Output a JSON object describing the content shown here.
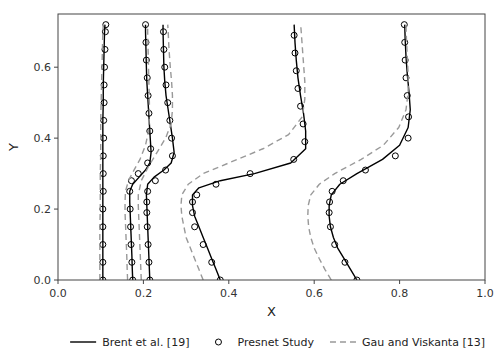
{
  "chart_data": {
    "type": "line",
    "x_label": "X",
    "y_label": "Y",
    "xlim": [
      0.0,
      1.0
    ],
    "ylim": [
      0.0,
      0.75
    ],
    "xticks": [
      {
        "value": 0.0,
        "label": "0.0"
      },
      0.2,
      0.4,
      0.6,
      0.8,
      {
        "value": 1.0,
        "label": "1.0"
      }
    ],
    "yticks": [
      {
        "value": 0.0,
        "label": "0.0"
      },
      0.2,
      0.4,
      0.6
    ],
    "grid": false,
    "legend": "lower right",
    "series": [
      {
        "name": "Brent et al. [19]",
        "color": "#000000",
        "line_style": "solid",
        "marker": "none",
        "x": [
          0.105,
          0.105,
          0.105,
          0.105,
          0.105,
          0.105,
          0.105,
          0.105,
          0.105,
          0.105,
          0.106,
          0.106,
          0.107,
          0.108,
          0.109,
          0.11
        ],
        "values": [
          0.0,
          0.05,
          0.1,
          0.15,
          0.2,
          0.25,
          0.3,
          0.35,
          0.4,
          0.45,
          0.5,
          0.55,
          0.6,
          0.65,
          0.7,
          0.72
        ]
      },
      {
        "name": "Presnet Study",
        "color": "#000000",
        "line_style": "none",
        "marker": "circle",
        "x": [
          0.105,
          0.105,
          0.105,
          0.105,
          0.105,
          0.106,
          0.106,
          0.106,
          0.107,
          0.107,
          0.108,
          0.108,
          0.109,
          0.11,
          0.111,
          0.112
        ],
        "values": [
          0.0,
          0.05,
          0.1,
          0.15,
          0.2,
          0.25,
          0.3,
          0.35,
          0.4,
          0.45,
          0.5,
          0.55,
          0.6,
          0.65,
          0.7,
          0.72
        ]
      },
      {
        "name": "Gau and Viskanta [13]",
        "color": "#999999",
        "line_style": "dashed",
        "marker": "none",
        "x": [
          0.098,
          0.098,
          0.098,
          0.098,
          0.099,
          0.099,
          0.099,
          0.1,
          0.1,
          0.1,
          0.101,
          0.102,
          0.103,
          0.104,
          0.105,
          0.106
        ],
        "values": [
          0.0,
          0.05,
          0.1,
          0.15,
          0.2,
          0.25,
          0.3,
          0.35,
          0.4,
          0.45,
          0.5,
          0.55,
          0.6,
          0.65,
          0.7,
          0.72
        ]
      },
      {
        "name": "Brent et al. [19]",
        "color": "#000000",
        "line_style": "solid",
        "marker": "none",
        "x": [
          0.175,
          0.174,
          0.173,
          0.172,
          0.171,
          0.17,
          0.169,
          0.168,
          0.168,
          0.175,
          0.19,
          0.205,
          0.215,
          0.218,
          0.216,
          0.214,
          0.212,
          0.21,
          0.208,
          0.207,
          0.206,
          0.205,
          0.205
        ],
        "values": [
          0.0,
          0.03,
          0.07,
          0.1,
          0.13,
          0.16,
          0.19,
          0.22,
          0.25,
          0.27,
          0.29,
          0.31,
          0.33,
          0.36,
          0.4,
          0.44,
          0.48,
          0.52,
          0.56,
          0.6,
          0.65,
          0.7,
          0.72
        ]
      },
      {
        "name": "Presnet Study",
        "color": "#000000",
        "line_style": "none",
        "marker": "circle",
        "x": [
          0.175,
          0.173,
          0.171,
          0.17,
          0.169,
          0.168,
          0.172,
          0.188,
          0.21,
          0.217,
          0.215,
          0.213,
          0.211,
          0.209,
          0.207,
          0.206,
          0.205
        ],
        "values": [
          0.0,
          0.05,
          0.1,
          0.15,
          0.2,
          0.25,
          0.28,
          0.3,
          0.33,
          0.37,
          0.42,
          0.47,
          0.52,
          0.57,
          0.62,
          0.67,
          0.72
        ]
      },
      {
        "name": "Gau and Viskanta [13]",
        "color": "#999999",
        "line_style": "dashed",
        "marker": "none",
        "x": [
          0.163,
          0.162,
          0.161,
          0.16,
          0.159,
          0.158,
          0.157,
          0.157,
          0.158,
          0.165,
          0.178,
          0.192,
          0.205,
          0.212,
          0.214,
          0.214,
          0.213,
          0.212,
          0.211,
          0.21,
          0.21
        ],
        "values": [
          0.0,
          0.03,
          0.07,
          0.1,
          0.13,
          0.16,
          0.19,
          0.22,
          0.25,
          0.28,
          0.31,
          0.34,
          0.38,
          0.42,
          0.46,
          0.5,
          0.55,
          0.6,
          0.65,
          0.7,
          0.72
        ]
      },
      {
        "name": "Brent et al. [19]",
        "color": "#000000",
        "line_style": "solid",
        "marker": "none",
        "x": [
          0.215,
          0.214,
          0.213,
          0.212,
          0.211,
          0.21,
          0.209,
          0.208,
          0.207,
          0.21,
          0.225,
          0.248,
          0.265,
          0.272,
          0.268,
          0.263,
          0.258,
          0.253,
          0.25,
          0.248,
          0.247,
          0.246,
          0.246
        ],
        "values": [
          0.0,
          0.03,
          0.06,
          0.09,
          0.12,
          0.15,
          0.18,
          0.21,
          0.24,
          0.27,
          0.29,
          0.31,
          0.33,
          0.36,
          0.4,
          0.44,
          0.48,
          0.52,
          0.56,
          0.6,
          0.65,
          0.7,
          0.72
        ]
      },
      {
        "name": "Presnet Study",
        "color": "#000000",
        "line_style": "none",
        "marker": "circle",
        "x": [
          0.215,
          0.213,
          0.211,
          0.209,
          0.208,
          0.208,
          0.21,
          0.228,
          0.252,
          0.268,
          0.266,
          0.262,
          0.257,
          0.253,
          0.25,
          0.248,
          0.247
        ],
        "values": [
          0.0,
          0.05,
          0.1,
          0.15,
          0.19,
          0.22,
          0.25,
          0.28,
          0.31,
          0.35,
          0.4,
          0.45,
          0.5,
          0.55,
          0.6,
          0.65,
          0.7
        ]
      },
      {
        "name": "Gau and Viskanta [13]",
        "color": "#999999",
        "line_style": "dashed",
        "marker": "none",
        "x": [
          0.195,
          0.194,
          0.193,
          0.192,
          0.191,
          0.19,
          0.189,
          0.188,
          0.188,
          0.195,
          0.212,
          0.232,
          0.252,
          0.265,
          0.268,
          0.268,
          0.266,
          0.263,
          0.26,
          0.258,
          0.257
        ],
        "values": [
          0.0,
          0.03,
          0.06,
          0.09,
          0.12,
          0.15,
          0.18,
          0.21,
          0.24,
          0.28,
          0.32,
          0.36,
          0.4,
          0.44,
          0.48,
          0.52,
          0.56,
          0.6,
          0.65,
          0.7,
          0.72
        ]
      },
      {
        "name": "Brent et al. [19]",
        "color": "#000000",
        "line_style": "solid",
        "marker": "none",
        "x": [
          0.38,
          0.37,
          0.36,
          0.35,
          0.34,
          0.33,
          0.32,
          0.315,
          0.315,
          0.33,
          0.38,
          0.46,
          0.545,
          0.58,
          0.58,
          0.575,
          0.568,
          0.562,
          0.558,
          0.555,
          0.553
        ],
        "values": [
          0.0,
          0.03,
          0.06,
          0.09,
          0.12,
          0.15,
          0.18,
          0.21,
          0.24,
          0.26,
          0.28,
          0.3,
          0.33,
          0.37,
          0.42,
          0.47,
          0.52,
          0.57,
          0.62,
          0.67,
          0.72
        ]
      },
      {
        "name": "Presnet Study",
        "color": "#000000",
        "line_style": "none",
        "marker": "circle",
        "x": [
          0.38,
          0.36,
          0.34,
          0.32,
          0.315,
          0.315,
          0.325,
          0.37,
          0.45,
          0.552,
          0.578,
          0.574,
          0.568,
          0.562,
          0.558,
          0.555,
          0.553
        ],
        "values": [
          0.0,
          0.05,
          0.1,
          0.15,
          0.19,
          0.22,
          0.24,
          0.27,
          0.3,
          0.34,
          0.39,
          0.44,
          0.49,
          0.54,
          0.59,
          0.64,
          0.69
        ]
      },
      {
        "name": "Gau and Viskanta [13]",
        "color": "#999999",
        "line_style": "dashed",
        "marker": "none",
        "x": [
          0.34,
          0.33,
          0.32,
          0.31,
          0.3,
          0.295,
          0.29,
          0.288,
          0.29,
          0.305,
          0.34,
          0.4,
          0.48,
          0.54,
          0.572,
          0.578,
          0.578,
          0.575,
          0.572,
          0.569,
          0.568
        ],
        "values": [
          0.0,
          0.03,
          0.06,
          0.09,
          0.12,
          0.15,
          0.18,
          0.21,
          0.24,
          0.27,
          0.3,
          0.33,
          0.37,
          0.41,
          0.46,
          0.51,
          0.56,
          0.61,
          0.66,
          0.71,
          0.72
        ]
      },
      {
        "name": "Brent et al. [19]",
        "color": "#000000",
        "line_style": "solid",
        "marker": "none",
        "x": [
          0.7,
          0.685,
          0.67,
          0.655,
          0.645,
          0.638,
          0.635,
          0.635,
          0.64,
          0.66,
          0.7,
          0.76,
          0.8,
          0.82,
          0.825,
          0.822,
          0.818,
          0.815,
          0.813,
          0.812
        ],
        "values": [
          0.0,
          0.03,
          0.06,
          0.09,
          0.12,
          0.15,
          0.18,
          0.21,
          0.24,
          0.27,
          0.3,
          0.34,
          0.38,
          0.43,
          0.48,
          0.53,
          0.58,
          0.63,
          0.68,
          0.72
        ]
      },
      {
        "name": "Presnet Study",
        "color": "#000000",
        "line_style": "none",
        "marker": "circle",
        "x": [
          0.7,
          0.672,
          0.648,
          0.638,
          0.635,
          0.636,
          0.642,
          0.668,
          0.72,
          0.79,
          0.82,
          0.821,
          0.818,
          0.815,
          0.813,
          0.812,
          0.811
        ],
        "values": [
          0.0,
          0.05,
          0.1,
          0.15,
          0.19,
          0.22,
          0.25,
          0.28,
          0.31,
          0.35,
          0.4,
          0.46,
          0.52,
          0.57,
          0.62,
          0.67,
          0.72
        ]
      },
      {
        "name": "Gau and Viskanta [13]",
        "color": "#999999",
        "line_style": "dashed",
        "marker": "none",
        "x": [
          0.64,
          0.625,
          0.612,
          0.6,
          0.592,
          0.587,
          0.585,
          0.586,
          0.592,
          0.612,
          0.648,
          0.71,
          0.762,
          0.798,
          0.815,
          0.82,
          0.82,
          0.818,
          0.816,
          0.815
        ],
        "values": [
          0.0,
          0.03,
          0.06,
          0.09,
          0.12,
          0.15,
          0.18,
          0.21,
          0.24,
          0.27,
          0.3,
          0.34,
          0.38,
          0.43,
          0.48,
          0.53,
          0.58,
          0.63,
          0.68,
          0.72
        ]
      }
    ]
  }
}
